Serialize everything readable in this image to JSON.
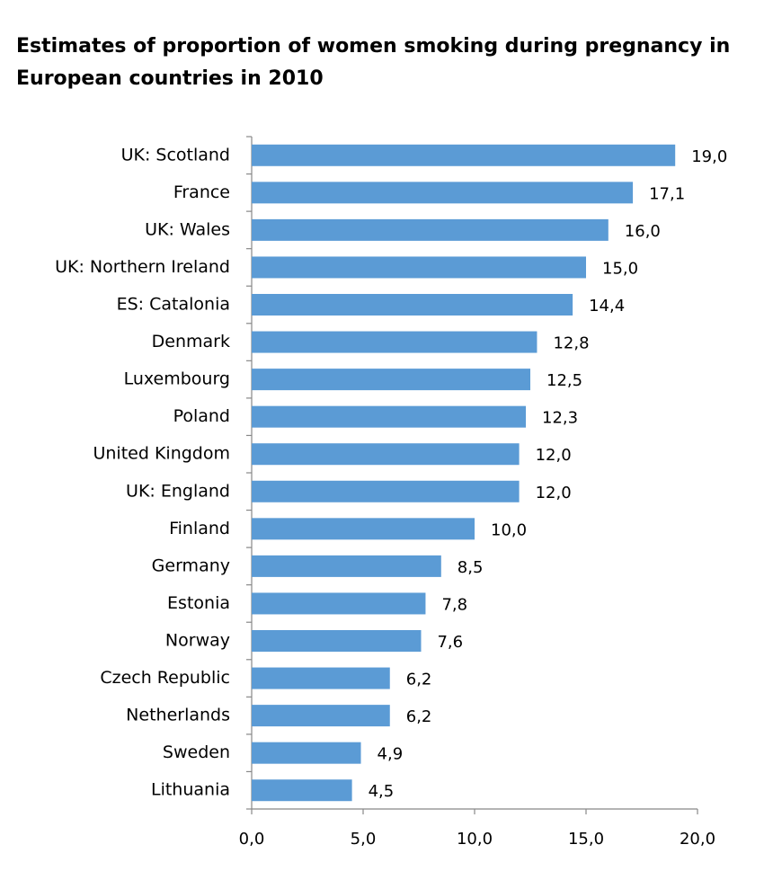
{
  "chart_data": {
    "type": "bar",
    "orientation": "horizontal",
    "title": "Estimates of proportion of women smoking during pregnancy in European countries in 2010",
    "categories": [
      "UK: Scotland",
      "France",
      "UK: Wales",
      "UK: Northern Ireland",
      "ES: Catalonia",
      "Denmark",
      "Luxembourg",
      "Poland",
      "United Kingdom",
      "UK: England",
      "Finland",
      "Germany",
      "Estonia",
      "Norway",
      "Czech Republic",
      "Netherlands",
      "Sweden",
      "Lithuania"
    ],
    "values": [
      19.0,
      17.1,
      16.0,
      15.0,
      14.4,
      12.8,
      12.5,
      12.3,
      12.0,
      12.0,
      10.0,
      8.5,
      7.8,
      7.6,
      6.2,
      6.2,
      4.9,
      4.5
    ],
    "value_labels": [
      "19,0",
      "17,1",
      "16,0",
      "15,0",
      "14,4",
      "12,8",
      "12,5",
      "12,3",
      "12,0",
      "12,0",
      "10,0",
      "8,5",
      "7,8",
      "7,6",
      "6,2",
      "6,2",
      "4,9",
      "4,5"
    ],
    "color": "#5b9bd5",
    "xlim": [
      0,
      20
    ],
    "xticks": [
      {
        "value": 0,
        "label": "0,0"
      },
      {
        "value": 5,
        "label": "5,0"
      },
      {
        "value": 10,
        "label": "10,0"
      },
      {
        "value": 15,
        "label": "15,0"
      },
      {
        "value": 20,
        "label": "20,0"
      }
    ],
    "grid": false
  }
}
